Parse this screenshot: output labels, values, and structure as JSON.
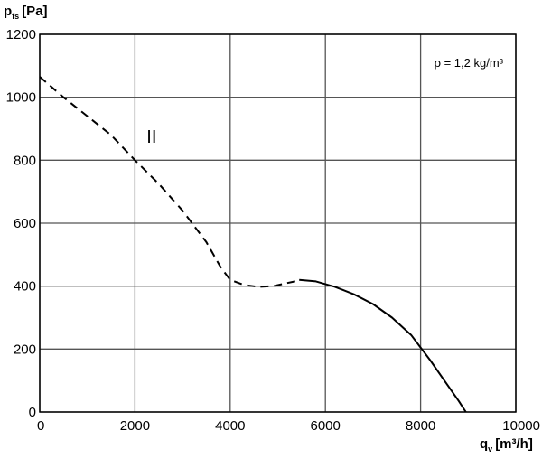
{
  "chart_data": {
    "type": "line",
    "y_axis": {
      "symbol": "p",
      "subscript": "fs",
      "unit": "[Pa]"
    },
    "x_axis": {
      "symbol": "q",
      "subscript": "v",
      "unit": "[m³/h]"
    },
    "xlim": [
      0,
      10000
    ],
    "ylim": [
      0,
      1200
    ],
    "x_ticks": [
      0,
      2000,
      4000,
      6000,
      8000,
      10000
    ],
    "y_ticks": [
      0,
      200,
      400,
      600,
      800,
      1000,
      1200
    ],
    "grid": true,
    "annotation": "ρ = 1,2 kg/m³",
    "curve_label": "II",
    "curve_label_at": [
      2350,
      855
    ],
    "series": [
      {
        "style": "dashed",
        "points": [
          [
            0,
            1065
          ],
          [
            500,
            1000
          ],
          [
            1000,
            940
          ],
          [
            1500,
            880
          ],
          [
            2000,
            800
          ],
          [
            2500,
            725
          ],
          [
            3000,
            640
          ],
          [
            3500,
            540
          ],
          [
            3800,
            460
          ],
          [
            4000,
            420
          ],
          [
            4300,
            403
          ],
          [
            4600,
            398
          ],
          [
            4900,
            400
          ],
          [
            5200,
            410
          ],
          [
            5450,
            418
          ]
        ]
      },
      {
        "style": "solid",
        "points": [
          [
            5450,
            420
          ],
          [
            5800,
            415
          ],
          [
            6200,
            398
          ],
          [
            6600,
            374
          ],
          [
            7000,
            343
          ],
          [
            7400,
            300
          ],
          [
            7800,
            245
          ],
          [
            8000,
            205
          ],
          [
            8200,
            165
          ],
          [
            8500,
            100
          ],
          [
            8800,
            35
          ],
          [
            8950,
            0
          ]
        ]
      }
    ]
  }
}
